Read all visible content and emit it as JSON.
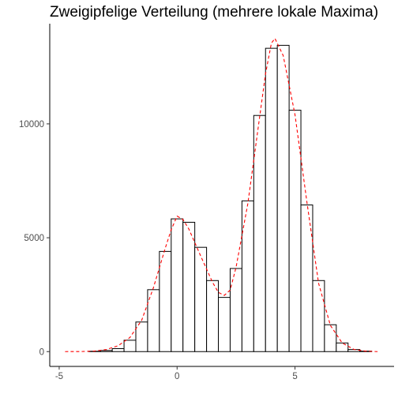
{
  "chart_data": {
    "type": "bar",
    "title": "Zweigipfelige Verteilung (mehrere lokale Maxima)",
    "xlabel": "",
    "ylabel": "",
    "bin_width": 0.5,
    "x_ticks": [
      {
        "value": -5,
        "label": "-5"
      },
      {
        "value": 0,
        "label": "0"
      },
      {
        "value": 5,
        "label": "5"
      }
    ],
    "y_ticks": [
      {
        "value": 0,
        "label": "0"
      },
      {
        "value": 5000,
        "label": "5000"
      },
      {
        "value": 10000,
        "label": "10000"
      }
    ],
    "xlim": [
      -5.4,
      9.2
    ],
    "ylim": [
      -650,
      14400
    ],
    "bars": [
      {
        "center": -3.5,
        "value": 15
      },
      {
        "center": -3.0,
        "value": 50
      },
      {
        "center": -2.5,
        "value": 130
      },
      {
        "center": -2.0,
        "value": 500
      },
      {
        "center": -1.5,
        "value": 1300
      },
      {
        "center": -1.0,
        "value": 2720
      },
      {
        "center": -0.5,
        "value": 4400
      },
      {
        "center": 0.0,
        "value": 5830
      },
      {
        "center": 0.5,
        "value": 5680
      },
      {
        "center": 1.0,
        "value": 4580
      },
      {
        "center": 1.5,
        "value": 3120
      },
      {
        "center": 2.0,
        "value": 2380
      },
      {
        "center": 2.5,
        "value": 3650
      },
      {
        "center": 3.0,
        "value": 6620
      },
      {
        "center": 3.5,
        "value": 10370
      },
      {
        "center": 4.0,
        "value": 13320
      },
      {
        "center": 4.5,
        "value": 13450
      },
      {
        "center": 5.0,
        "value": 10600
      },
      {
        "center": 5.5,
        "value": 6440
      },
      {
        "center": 6.0,
        "value": 3120
      },
      {
        "center": 6.5,
        "value": 1180
      },
      {
        "center": 7.0,
        "value": 380
      },
      {
        "center": 7.5,
        "value": 90
      },
      {
        "center": 8.0,
        "value": 20
      }
    ],
    "density_curve": {
      "style": "dashed",
      "points": [
        [
          -4.75,
          0
        ],
        [
          -4.0,
          5
        ],
        [
          -3.5,
          25
        ],
        [
          -3.0,
          90
        ],
        [
          -2.5,
          260
        ],
        [
          -2.0,
          620
        ],
        [
          -1.5,
          1380
        ],
        [
          -1.0,
          2820
        ],
        [
          -0.5,
          4550
        ],
        [
          -0.25,
          5350
        ],
        [
          0.0,
          5950
        ],
        [
          0.25,
          5800
        ],
        [
          0.5,
          5380
        ],
        [
          1.0,
          4200
        ],
        [
          1.5,
          3050
        ],
        [
          1.75,
          2600
        ],
        [
          2.0,
          2470
        ],
        [
          2.25,
          2700
        ],
        [
          2.5,
          3700
        ],
        [
          3.0,
          6500
        ],
        [
          3.5,
          10300
        ],
        [
          3.75,
          12200
        ],
        [
          4.0,
          13550
        ],
        [
          4.15,
          13750
        ],
        [
          4.5,
          13000
        ],
        [
          5.0,
          10400
        ],
        [
          5.5,
          6600
        ],
        [
          6.0,
          3000
        ],
        [
          6.5,
          1150
        ],
        [
          7.0,
          380
        ],
        [
          7.5,
          95
        ],
        [
          8.0,
          20
        ],
        [
          8.5,
          0
        ]
      ]
    },
    "grid": false,
    "legend": "none",
    "colors": {
      "bar_fill": "#ffffff",
      "bar_outline": "#000000",
      "curve": "#ff0000",
      "axis": "#000000",
      "tick_label": "#4d4d4d"
    }
  }
}
